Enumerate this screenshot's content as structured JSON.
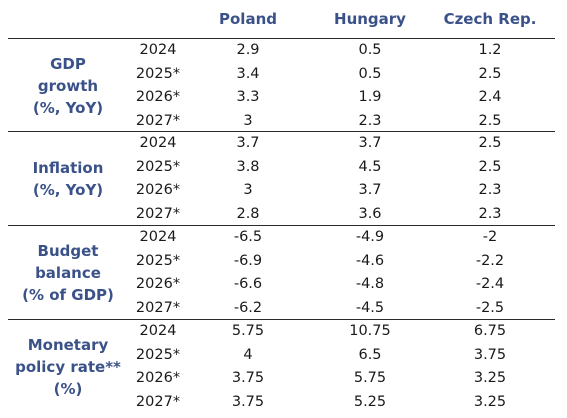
{
  "header": {
    "col1": "Poland",
    "col2": "Hungary",
    "col3": "Czech Rep."
  },
  "sections": [
    {
      "label": [
        "GDP",
        "growth",
        "(%, YoY)"
      ],
      "rows": [
        {
          "year": "2024",
          "poland": "2.9",
          "hungary": "0.5",
          "czech": "1.2"
        },
        {
          "year": "2025*",
          "poland": "3.4",
          "hungary": "0.5",
          "czech": "2.5"
        },
        {
          "year": "2026*",
          "poland": "3.3",
          "hungary": "1.9",
          "czech": "2.4"
        },
        {
          "year": "2027*",
          "poland": "3",
          "hungary": "2.3",
          "czech": "2.5"
        }
      ]
    },
    {
      "label": [
        "Inflation",
        "(%, YoY)"
      ],
      "rows": [
        {
          "year": "2024",
          "poland": "3.7",
          "hungary": "3.7",
          "czech": "2.5"
        },
        {
          "year": "2025*",
          "poland": "3.8",
          "hungary": "4.5",
          "czech": "2.5"
        },
        {
          "year": "2026*",
          "poland": "3",
          "hungary": "3.7",
          "czech": "2.3"
        },
        {
          "year": "2027*",
          "poland": "2.8",
          "hungary": "3.6",
          "czech": "2.3"
        }
      ]
    },
    {
      "label": [
        "Budget",
        "balance",
        "(% of GDP)"
      ],
      "rows": [
        {
          "year": "2024",
          "poland": "-6.5",
          "hungary": "-4.9",
          "czech": "-2"
        },
        {
          "year": "2025*",
          "poland": "-6.9",
          "hungary": "-4.6",
          "czech": "-2.2"
        },
        {
          "year": "2026*",
          "poland": "-6.6",
          "hungary": "-4.8",
          "czech": "-2.4"
        },
        {
          "year": "2027*",
          "poland": "-6.2",
          "hungary": "-4.5",
          "czech": "-2.5"
        }
      ]
    },
    {
      "label": [
        "Monetary",
        "policy rate**",
        "(%)"
      ],
      "rows": [
        {
          "year": "2024",
          "poland": "5.75",
          "hungary": "10.75",
          "czech": "6.75"
        },
        {
          "year": "2025*",
          "poland": "4",
          "hungary": "6.5",
          "czech": "3.75"
        },
        {
          "year": "2026*",
          "poland": "3.75",
          "hungary": "5.75",
          "czech": "3.25"
        },
        {
          "year": "2027*",
          "poland": "3.75",
          "hungary": "5.25",
          "czech": "3.25"
        }
      ]
    }
  ]
}
